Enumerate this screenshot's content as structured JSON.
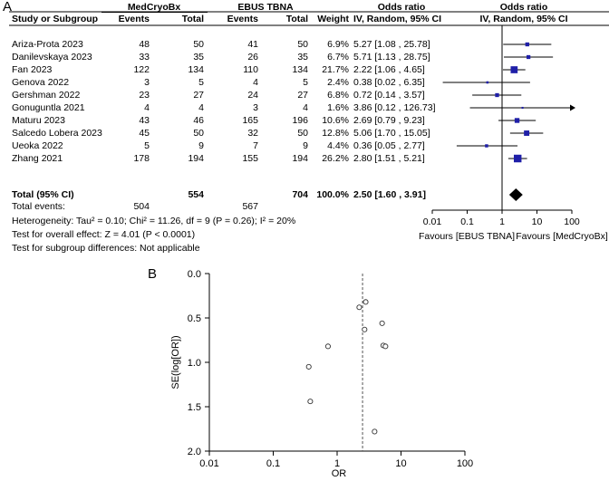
{
  "panel_a": {
    "letter": "A",
    "group_headers": {
      "exp": "MedCryoBx",
      "ctrl": "EBUS TBNA",
      "or_ci": "Odds ratio",
      "or_plot": "Odds ratio"
    },
    "col_headers": {
      "study": "Study or Subgroup",
      "events1": "Events",
      "total1": "Total",
      "events2": "Events",
      "total2": "Total",
      "weight": "Weight",
      "method_ci": "IV, Random, 95% CI",
      "method_plot": "IV, Random, 95% CI"
    },
    "total_row": {
      "label": "Total (95% CI)",
      "total1": "554",
      "total2": "704",
      "weight": "100.0%",
      "ci": "2.50 [1.60 , 3.91]"
    },
    "total_events": {
      "label": "Total events:",
      "e1": "504",
      "e2": "567"
    },
    "heterogeneity": "Heterogeneity: Tau² = 0.10; Chi² = 11.26, df = 9 (P = 0.26); I² = 20%",
    "overall_effect": "Test for overall effect: Z = 4.01 (P < 0.0001)",
    "subgroup_diff": "Test for subgroup differences: Not applicable",
    "favours_left": "Favours [EBUS TBNA]",
    "favours_right": "Favours [MedCryoBx]"
  },
  "panel_b": {
    "letter": "B"
  },
  "chart_data": [
    {
      "type": "forest",
      "scale": "log",
      "xlim": [
        0.01,
        100
      ],
      "ticks": [
        "0.01",
        "0.1",
        "1",
        "10",
        "100"
      ],
      "studies": [
        {
          "name": "Ariza-Prota 2023",
          "e1": "48",
          "t1": "50",
          "e2": "41",
          "t2": "50",
          "weight": "6.9%",
          "ci_text": "5.27 [1.08 , 25.78]",
          "or": 5.27,
          "lo": 1.08,
          "hi": 25.78,
          "w": 6.9
        },
        {
          "name": "Danilevskaya 2023",
          "e1": "33",
          "t1": "35",
          "e2": "26",
          "t2": "35",
          "weight": "6.7%",
          "ci_text": "5.71 [1.13 , 28.75]",
          "or": 5.71,
          "lo": 1.13,
          "hi": 28.75,
          "w": 6.7
        },
        {
          "name": "Fan 2023",
          "e1": "122",
          "t1": "134",
          "e2": "110",
          "t2": "134",
          "weight": "21.7%",
          "ci_text": "2.22 [1.06 , 4.65]",
          "or": 2.22,
          "lo": 1.06,
          "hi": 4.65,
          "w": 21.7
        },
        {
          "name": "Genova 2022",
          "e1": "3",
          "t1": "5",
          "e2": "4",
          "t2": "5",
          "weight": "2.4%",
          "ci_text": "0.38 [0.02 , 6.35]",
          "or": 0.38,
          "lo": 0.02,
          "hi": 6.35,
          "w": 2.4
        },
        {
          "name": "Gershman 2022",
          "e1": "23",
          "t1": "27",
          "e2": "24",
          "t2": "27",
          "weight": "6.8%",
          "ci_text": "0.72 [0.14 , 3.57]",
          "or": 0.72,
          "lo": 0.14,
          "hi": 3.57,
          "w": 6.8
        },
        {
          "name": "Gonuguntla 2021",
          "e1": "4",
          "t1": "4",
          "e2": "3",
          "t2": "4",
          "weight": "1.6%",
          "ci_text": "3.86 [0.12 , 126.73]",
          "or": 3.86,
          "lo": 0.12,
          "hi": 126.73,
          "w": 1.6
        },
        {
          "name": "Maturu 2023",
          "e1": "43",
          "t1": "46",
          "e2": "165",
          "t2": "196",
          "weight": "10.6%",
          "ci_text": "2.69 [0.79 , 9.23]",
          "or": 2.69,
          "lo": 0.79,
          "hi": 9.23,
          "w": 10.6
        },
        {
          "name": "Salcedo Lobera 2023",
          "e1": "45",
          "t1": "50",
          "e2": "32",
          "t2": "50",
          "weight": "12.8%",
          "ci_text": "5.06 [1.70 , 15.05]",
          "or": 5.06,
          "lo": 1.7,
          "hi": 15.05,
          "w": 12.8
        },
        {
          "name": "Ueoka 2022",
          "e1": "5",
          "t1": "9",
          "e2": "7",
          "t2": "9",
          "weight": "4.4%",
          "ci_text": "0.36 [0.05 , 2.77]",
          "or": 0.36,
          "lo": 0.05,
          "hi": 2.77,
          "w": 4.4
        },
        {
          "name": "Zhang 2021",
          "e1": "178",
          "t1": "194",
          "e2": "155",
          "t2": "194",
          "weight": "26.2%",
          "ci_text": "2.80 [1.51 , 5.21]",
          "or": 2.8,
          "lo": 1.51,
          "hi": 5.21,
          "w": 26.2
        }
      ],
      "pooled": {
        "or": 2.5,
        "lo": 1.6,
        "hi": 3.91
      },
      "colors": {
        "marker": "#1f1fa8",
        "line": "#000000"
      }
    },
    {
      "type": "scatter",
      "subtype": "funnel",
      "xlabel": "OR",
      "ylabel": "SE(log[OR])",
      "x_scale": "log",
      "xlim": [
        0.01,
        100
      ],
      "ylim": [
        2.0,
        0.0
      ],
      "x_ticks": [
        "0.01",
        "0.1",
        "1",
        "10",
        "100"
      ],
      "y_ticks": [
        "0.0",
        "0.5",
        "1.0",
        "1.5",
        "2.0"
      ],
      "reference_line_x": 2.5,
      "points": [
        {
          "x": 5.27,
          "y": 0.81
        },
        {
          "x": 5.71,
          "y": 0.82
        },
        {
          "x": 2.22,
          "y": 0.38
        },
        {
          "x": 0.38,
          "y": 1.44
        },
        {
          "x": 0.72,
          "y": 0.82
        },
        {
          "x": 3.86,
          "y": 1.78
        },
        {
          "x": 2.69,
          "y": 0.63
        },
        {
          "x": 5.06,
          "y": 0.56
        },
        {
          "x": 0.36,
          "y": 1.05
        },
        {
          "x": 2.8,
          "y": 0.32
        }
      ]
    }
  ]
}
